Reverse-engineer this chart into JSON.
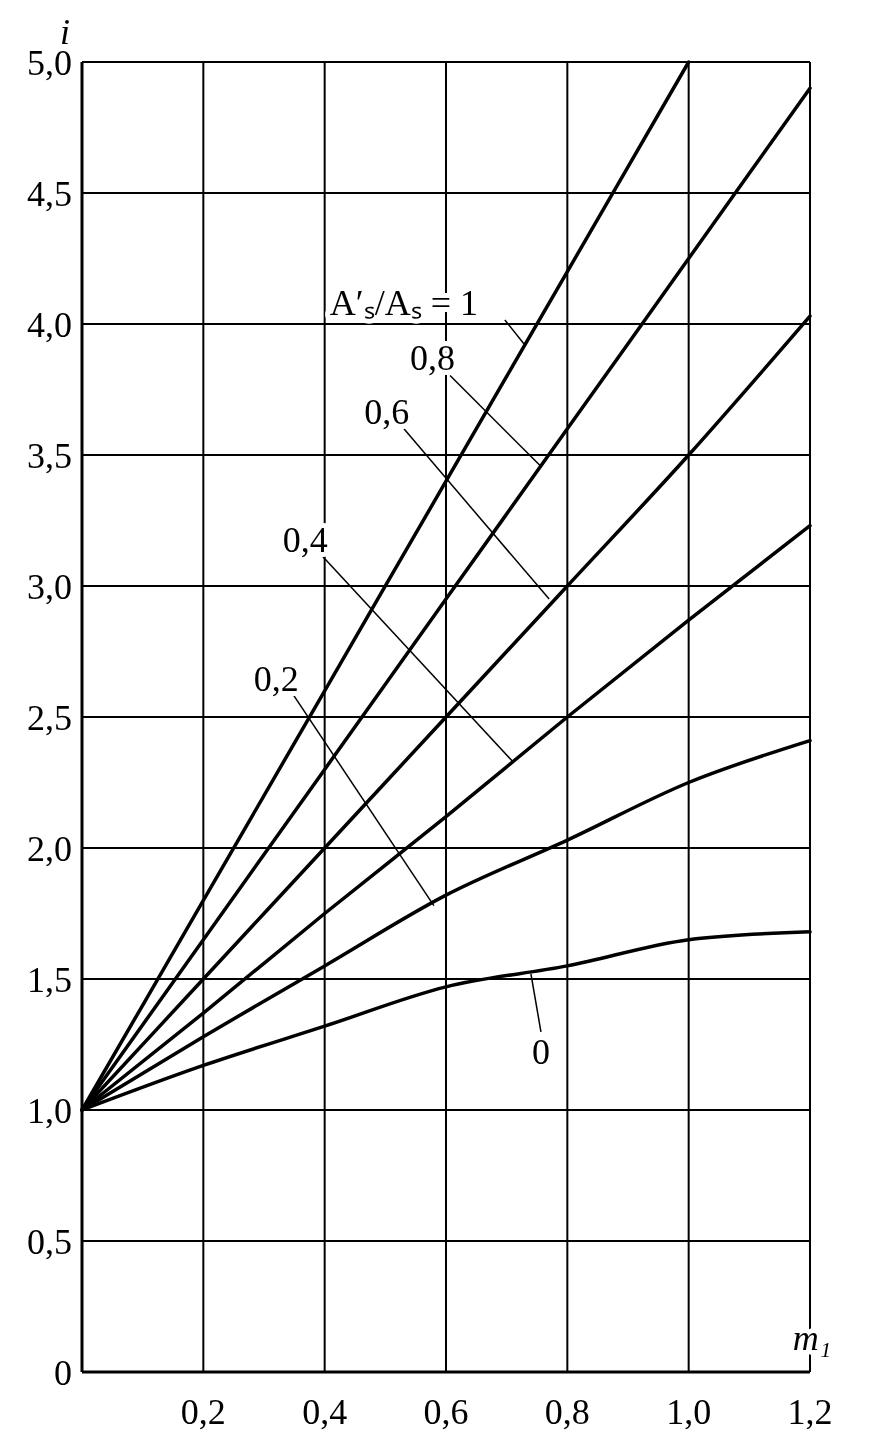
{
  "chart_data": {
    "type": "line",
    "xlabel": "m₁",
    "ylabel": "i",
    "xlim": [
      0,
      1.2
    ],
    "ylim": [
      0,
      5
    ],
    "xticks": [
      {
        "value": 0.2,
        "label": "0,2"
      },
      {
        "value": 0.4,
        "label": "0,4"
      },
      {
        "value": 0.6,
        "label": "0,6"
      },
      {
        "value": 0.8,
        "label": "0,8"
      },
      {
        "value": 1.0,
        "label": "1,0"
      },
      {
        "value": 1.2,
        "label": "1,2"
      }
    ],
    "yticks": [
      0,
      {
        "value": 0.5,
        "label": "0,5"
      },
      {
        "value": 1,
        "label": "1,0"
      },
      {
        "value": 1.5,
        "label": "1,5"
      },
      {
        "value": 2,
        "label": "2,0"
      },
      {
        "value": 2.5,
        "label": "2,5"
      },
      {
        "value": 3,
        "label": "3,0"
      },
      {
        "value": 3.5,
        "label": "3,5"
      },
      {
        "value": 4,
        "label": "4,0"
      },
      {
        "value": 4.5,
        "label": "4,5"
      },
      {
        "value": 5,
        "label": "5,0"
      }
    ],
    "grid": true,
    "marker": "none",
    "line_style": "solid",
    "series": [
      {
        "color": "#000000",
        "x": [
          0,
          0.2,
          0.4,
          0.6,
          0.8,
          1.0
        ],
        "values": [
          1,
          1.8,
          2.6,
          3.4,
          4.2,
          5.0
        ]
      },
      {
        "color": "#000000",
        "x": [
          0,
          0.2,
          0.4,
          0.6,
          0.8,
          1.0,
          1.2
        ],
        "values": [
          1,
          1.65,
          2.3,
          2.95,
          3.6,
          4.25,
          4.9
        ]
      },
      {
        "color": "#000000",
        "x": [
          0,
          0.2,
          0.4,
          0.6,
          0.8,
          1.0,
          1.2
        ],
        "values": [
          1,
          1.5,
          2.0,
          2.5,
          3.0,
          3.5,
          4.03
        ]
      },
      {
        "color": "#000000",
        "x": [
          0,
          0.2,
          0.4,
          0.6,
          0.8,
          1.0,
          1.2
        ],
        "values": [
          1,
          1.37,
          1.75,
          2.12,
          2.5,
          2.87,
          3.23
        ]
      },
      {
        "color": "#000000",
        "x": [
          0,
          0.2,
          0.4,
          0.6,
          0.8,
          1.0,
          1.2
        ],
        "values": [
          1,
          1.28,
          1.55,
          1.82,
          2.03,
          2.25,
          2.41
        ]
      },
      {
        "color": "#000000",
        "x": [
          0,
          0.2,
          0.4,
          0.6,
          0.8,
          1.0,
          1.2
        ],
        "values": [
          1,
          1.17,
          1.32,
          1.47,
          1.55,
          1.65,
          1.68
        ]
      }
    ],
    "annotations": [
      {
        "text": "A′ₛ/Aₛ = 1",
        "x": 0.73,
        "y": 3.92
      },
      {
        "text": "0,8",
        "x": 0.755,
        "y": 3.46
      },
      {
        "text": "0,6",
        "x": 0.77,
        "y": 2.95
      },
      {
        "text": "0,4",
        "x": 0.71,
        "y": 2.33
      },
      {
        "text": "0,2",
        "x": 0.58,
        "y": 1.78
      },
      {
        "text": "0",
        "x": 0.74,
        "y": 1.52
      }
    ]
  }
}
